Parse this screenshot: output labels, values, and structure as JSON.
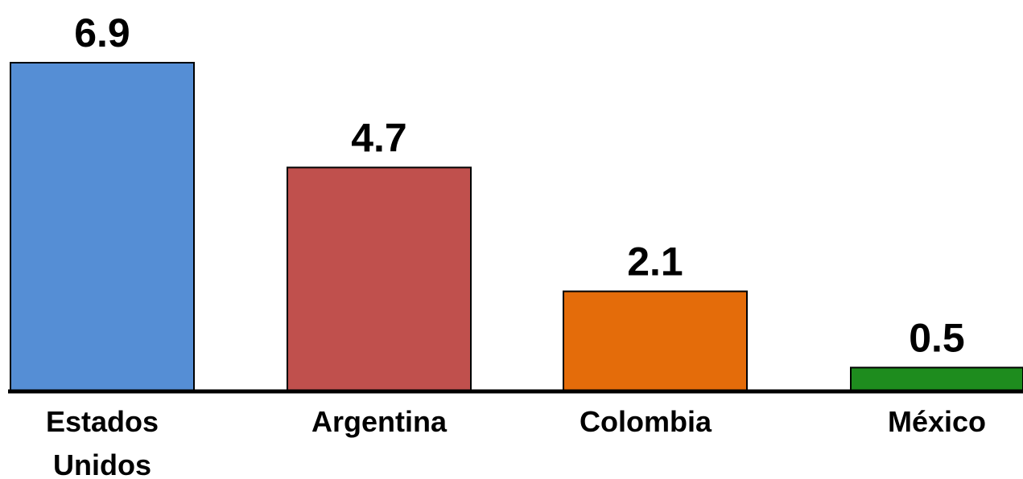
{
  "chart_data": {
    "type": "bar",
    "categories": [
      "Estados Unidos",
      "Argentina",
      "Colombia",
      "México"
    ],
    "category_lines": [
      [
        "Estados",
        "Unidos"
      ],
      [
        "Argentina"
      ],
      [
        "Colombia"
      ],
      [
        "México"
      ]
    ],
    "values": [
      6.9,
      4.7,
      2.1,
      0.5
    ],
    "value_labels": [
      "6.9",
      "4.7",
      "2.1",
      "0.5"
    ],
    "bar_colors": [
      "#558ED5",
      "#C0504D",
      "#E46C0A",
      "#1E8C1E"
    ],
    "ylim": [
      0,
      6.9
    ],
    "grid": false,
    "legend": "none"
  }
}
